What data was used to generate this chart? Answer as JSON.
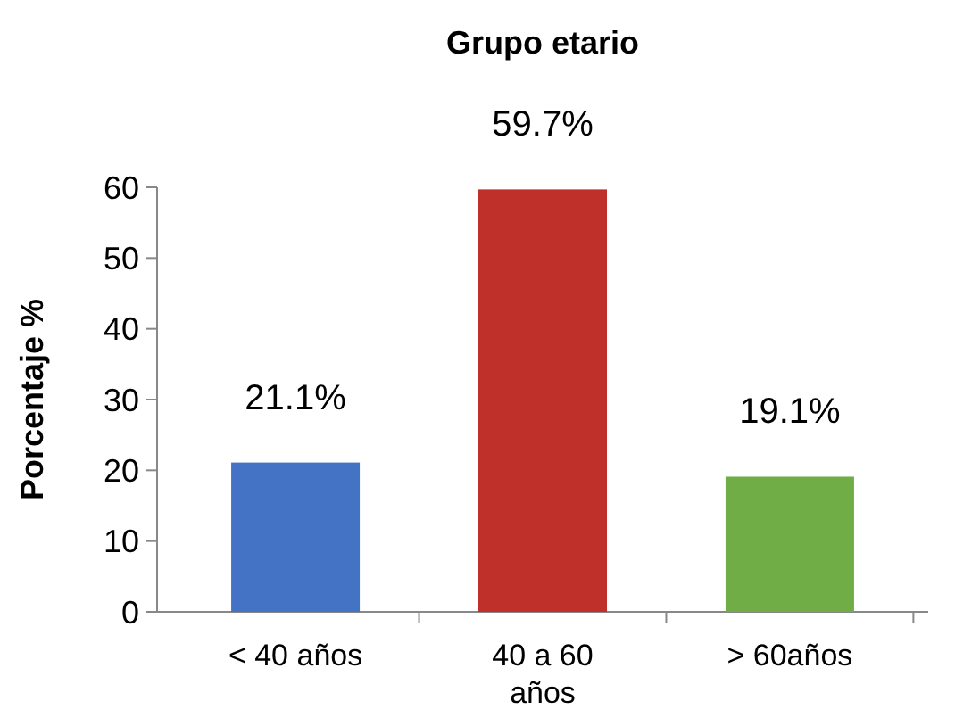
{
  "chart_data": {
    "type": "bar",
    "title": "Grupo etario",
    "ylabel": "Porcentaje %",
    "categories": [
      "< 40 años",
      "40 a 60 años",
      "> 60años"
    ],
    "values": [
      21.1,
      59.7,
      19.1
    ],
    "colors": [
      "#4472c4",
      "#c0302a",
      "#70ad47"
    ],
    "value_labels": [
      "21.1%",
      "59.7%",
      "19.1%"
    ],
    "ylim": [
      0,
      60
    ],
    "yticks": [
      0,
      10,
      20,
      30,
      40,
      50,
      60
    ],
    "grid": false
  }
}
